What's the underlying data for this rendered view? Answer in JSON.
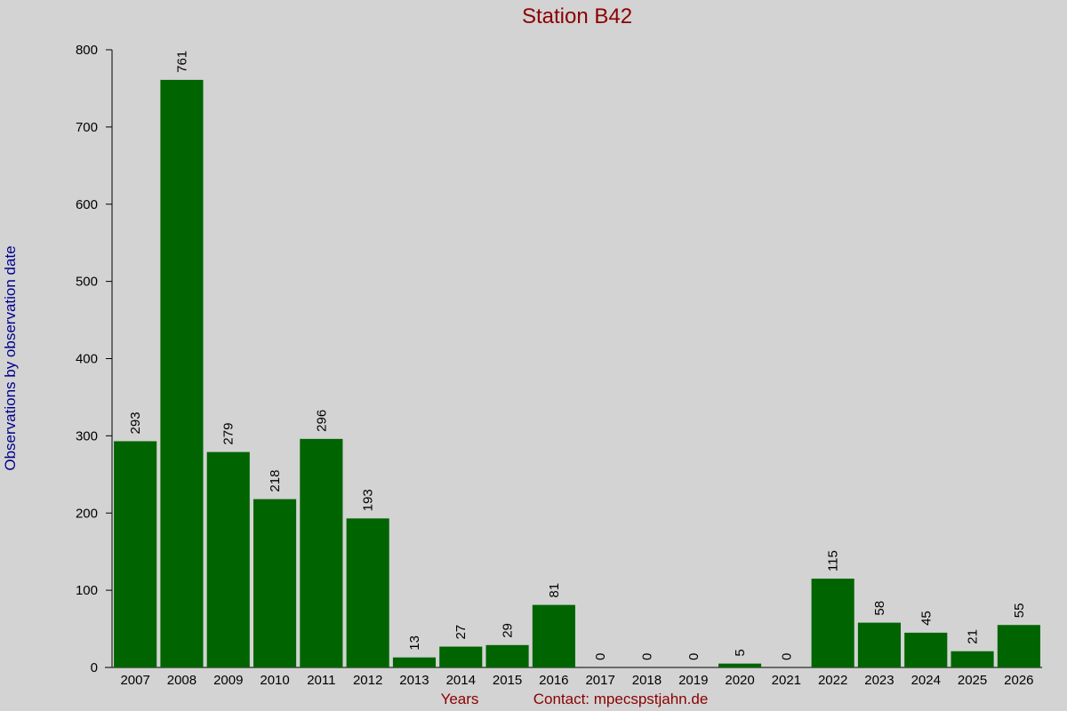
{
  "chart_data": {
    "type": "bar",
    "title": "Station B42",
    "x_label": "Years",
    "annotation": "Contact: mpecspstjahn.de",
    "y_label": "Observations by observation date",
    "categories": [
      "2007",
      "2008",
      "2009",
      "2010",
      "2011",
      "2012",
      "2013",
      "2014",
      "2015",
      "2016",
      "2017",
      "2018",
      "2019",
      "2020",
      "2021",
      "2022",
      "2023",
      "2024",
      "2025",
      "2026"
    ],
    "values": [
      293,
      761,
      279,
      218,
      296,
      193,
      13,
      27,
      29,
      81,
      0,
      0,
      0,
      5,
      0,
      115,
      58,
      45,
      21,
      55
    ],
    "color": "#006400",
    "ylim": [
      0,
      800
    ],
    "yticks": [
      0,
      100,
      200,
      300,
      400,
      500,
      600,
      700,
      800
    ]
  }
}
